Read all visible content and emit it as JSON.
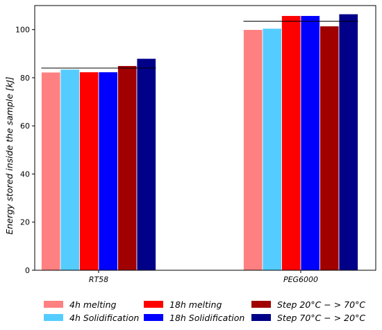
{
  "chart_data": {
    "type": "bar",
    "title": "",
    "xlabel": "",
    "ylabel": "Energy stored inside the sample [kJ]",
    "ylim": [
      0,
      110
    ],
    "yticks": [
      0,
      20,
      40,
      60,
      80,
      100
    ],
    "categories": [
      "RT58",
      "PEG6000"
    ],
    "grid": false,
    "legend_position": "bottom",
    "series": [
      {
        "name": "4h melting",
        "values": [
          82.3,
          100.0
        ],
        "color": "#ff8080"
      },
      {
        "name": "4h Solidification",
        "values": [
          83.5,
          100.5
        ],
        "color": "#55ccff"
      },
      {
        "name": "18h melting",
        "values": [
          82.4,
          105.8
        ],
        "color": "#ff0000"
      },
      {
        "name": "18h Solidification",
        "values": [
          82.4,
          105.8
        ],
        "color": "#0000ff"
      },
      {
        "name": "Step 20°C − > 70°C",
        "values": [
          85.0,
          101.5
        ],
        "color": "#a00000"
      },
      {
        "name": "Step 70°C − > 20°C",
        "values": [
          88.0,
          106.5
        ],
        "color": "#000088"
      }
    ],
    "reference_lines": [
      84.0,
      103.5
    ]
  }
}
